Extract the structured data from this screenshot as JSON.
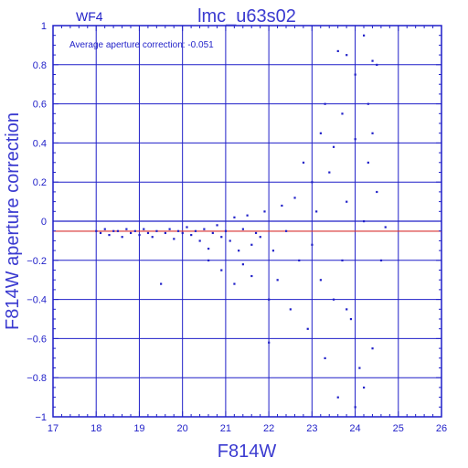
{
  "chart_data": {
    "type": "scatter",
    "title": "lmc_u63s02",
    "chip_label": "WF4",
    "annotation": "Average aperture correction: -0.051",
    "xlabel": "F814W",
    "ylabel": "F814W aperture correction",
    "xlim": [
      17,
      26
    ],
    "ylim": [
      -1,
      1
    ],
    "x_ticks": [
      17,
      18,
      19,
      20,
      21,
      22,
      23,
      24,
      25,
      26
    ],
    "y_ticks": [
      -1,
      -0.8,
      -0.6,
      -0.4,
      -0.2,
      0,
      0.2,
      0.4,
      0.6,
      0.8,
      1
    ],
    "x_tick_labels": [
      "17",
      "18",
      "19",
      "20",
      "21",
      "22",
      "23",
      "24",
      "25",
      "26"
    ],
    "y_tick_labels": [
      "−1",
      "−0.8",
      "−0.6",
      "−0.4",
      "−0.2",
      "0",
      "0.2",
      "0.4",
      "0.6",
      "0.8",
      "1"
    ],
    "grid": true,
    "reference_lines": [
      {
        "name": "zero",
        "y": 0,
        "color": "#1f1fc8"
      },
      {
        "name": "average",
        "y": -0.051,
        "color": "#d83030"
      }
    ],
    "series": [
      {
        "color": "#1f1fc8",
        "points": [
          [
            18.0,
            -0.05
          ],
          [
            18.1,
            -0.06
          ],
          [
            18.2,
            -0.04
          ],
          [
            18.3,
            -0.07
          ],
          [
            18.4,
            -0.05
          ],
          [
            18.5,
            -0.05
          ],
          [
            18.6,
            -0.08
          ],
          [
            18.7,
            -0.04
          ],
          [
            18.8,
            -0.06
          ],
          [
            18.9,
            -0.05
          ],
          [
            19.0,
            -0.07
          ],
          [
            19.1,
            -0.04
          ],
          [
            19.2,
            -0.06
          ],
          [
            19.3,
            -0.08
          ],
          [
            19.4,
            -0.05
          ],
          [
            19.5,
            -0.32
          ],
          [
            19.6,
            -0.06
          ],
          [
            19.7,
            -0.04
          ],
          [
            19.8,
            -0.09
          ],
          [
            19.9,
            -0.05
          ],
          [
            20.0,
            -0.06
          ],
          [
            20.1,
            -0.03
          ],
          [
            20.2,
            -0.07
          ],
          [
            20.3,
            -0.05
          ],
          [
            20.4,
            -0.1
          ],
          [
            20.5,
            -0.04
          ],
          [
            20.6,
            -0.2
          ],
          [
            20.7,
            -0.06
          ],
          [
            20.8,
            -0.02
          ],
          [
            20.9,
            -0.08
          ],
          [
            20.6,
            -0.14
          ],
          [
            20.9,
            -0.25
          ],
          [
            21.0,
            -0.05
          ],
          [
            21.1,
            -0.1
          ],
          [
            21.2,
            0.02
          ],
          [
            21.3,
            -0.15
          ],
          [
            21.4,
            -0.04
          ],
          [
            21.5,
            0.03
          ],
          [
            21.6,
            -0.12
          ],
          [
            21.7,
            -0.06
          ],
          [
            21.2,
            -0.32
          ],
          [
            21.4,
            -0.22
          ],
          [
            21.6,
            -0.28
          ],
          [
            21.8,
            -0.08
          ],
          [
            21.9,
            0.05
          ],
          [
            22.0,
            -0.4
          ],
          [
            22.0,
            -0.62
          ],
          [
            22.1,
            -0.15
          ],
          [
            22.2,
            -0.3
          ],
          [
            22.3,
            0.08
          ],
          [
            22.4,
            -0.05
          ],
          [
            22.5,
            -0.45
          ],
          [
            22.6,
            0.12
          ],
          [
            22.7,
            -0.2
          ],
          [
            22.8,
            0.3
          ],
          [
            22.9,
            -0.55
          ],
          [
            23.0,
            -0.12
          ],
          [
            23.0,
            0.2
          ],
          [
            23.1,
            0.05
          ],
          [
            23.2,
            -0.3
          ],
          [
            23.2,
            0.45
          ],
          [
            23.3,
            0.6
          ],
          [
            23.3,
            -0.7
          ],
          [
            23.4,
            0.25
          ],
          [
            23.5,
            -0.4
          ],
          [
            23.5,
            0.38
          ],
          [
            23.6,
            0.87
          ],
          [
            23.6,
            -0.9
          ],
          [
            23.7,
            0.55
          ],
          [
            23.7,
            -0.2
          ],
          [
            23.8,
            0.85
          ],
          [
            23.8,
            0.1
          ],
          [
            23.9,
            -0.5
          ],
          [
            24.0,
            0.42
          ],
          [
            24.0,
            0.75
          ],
          [
            24.1,
            -0.75
          ],
          [
            24.2,
            0.95
          ],
          [
            24.2,
            0.0
          ],
          [
            24.3,
            0.6
          ],
          [
            24.4,
            0.82
          ],
          [
            24.4,
            -0.65
          ],
          [
            24.5,
            0.15
          ],
          [
            24.6,
            -0.2
          ],
          [
            24.5,
            0.8
          ],
          [
            24.7,
            -0.03
          ],
          [
            24.4,
            0.45
          ],
          [
            24.0,
            -0.95
          ],
          [
            24.2,
            -0.85
          ],
          [
            23.8,
            -0.45
          ],
          [
            24.3,
            0.3
          ]
        ]
      }
    ]
  }
}
